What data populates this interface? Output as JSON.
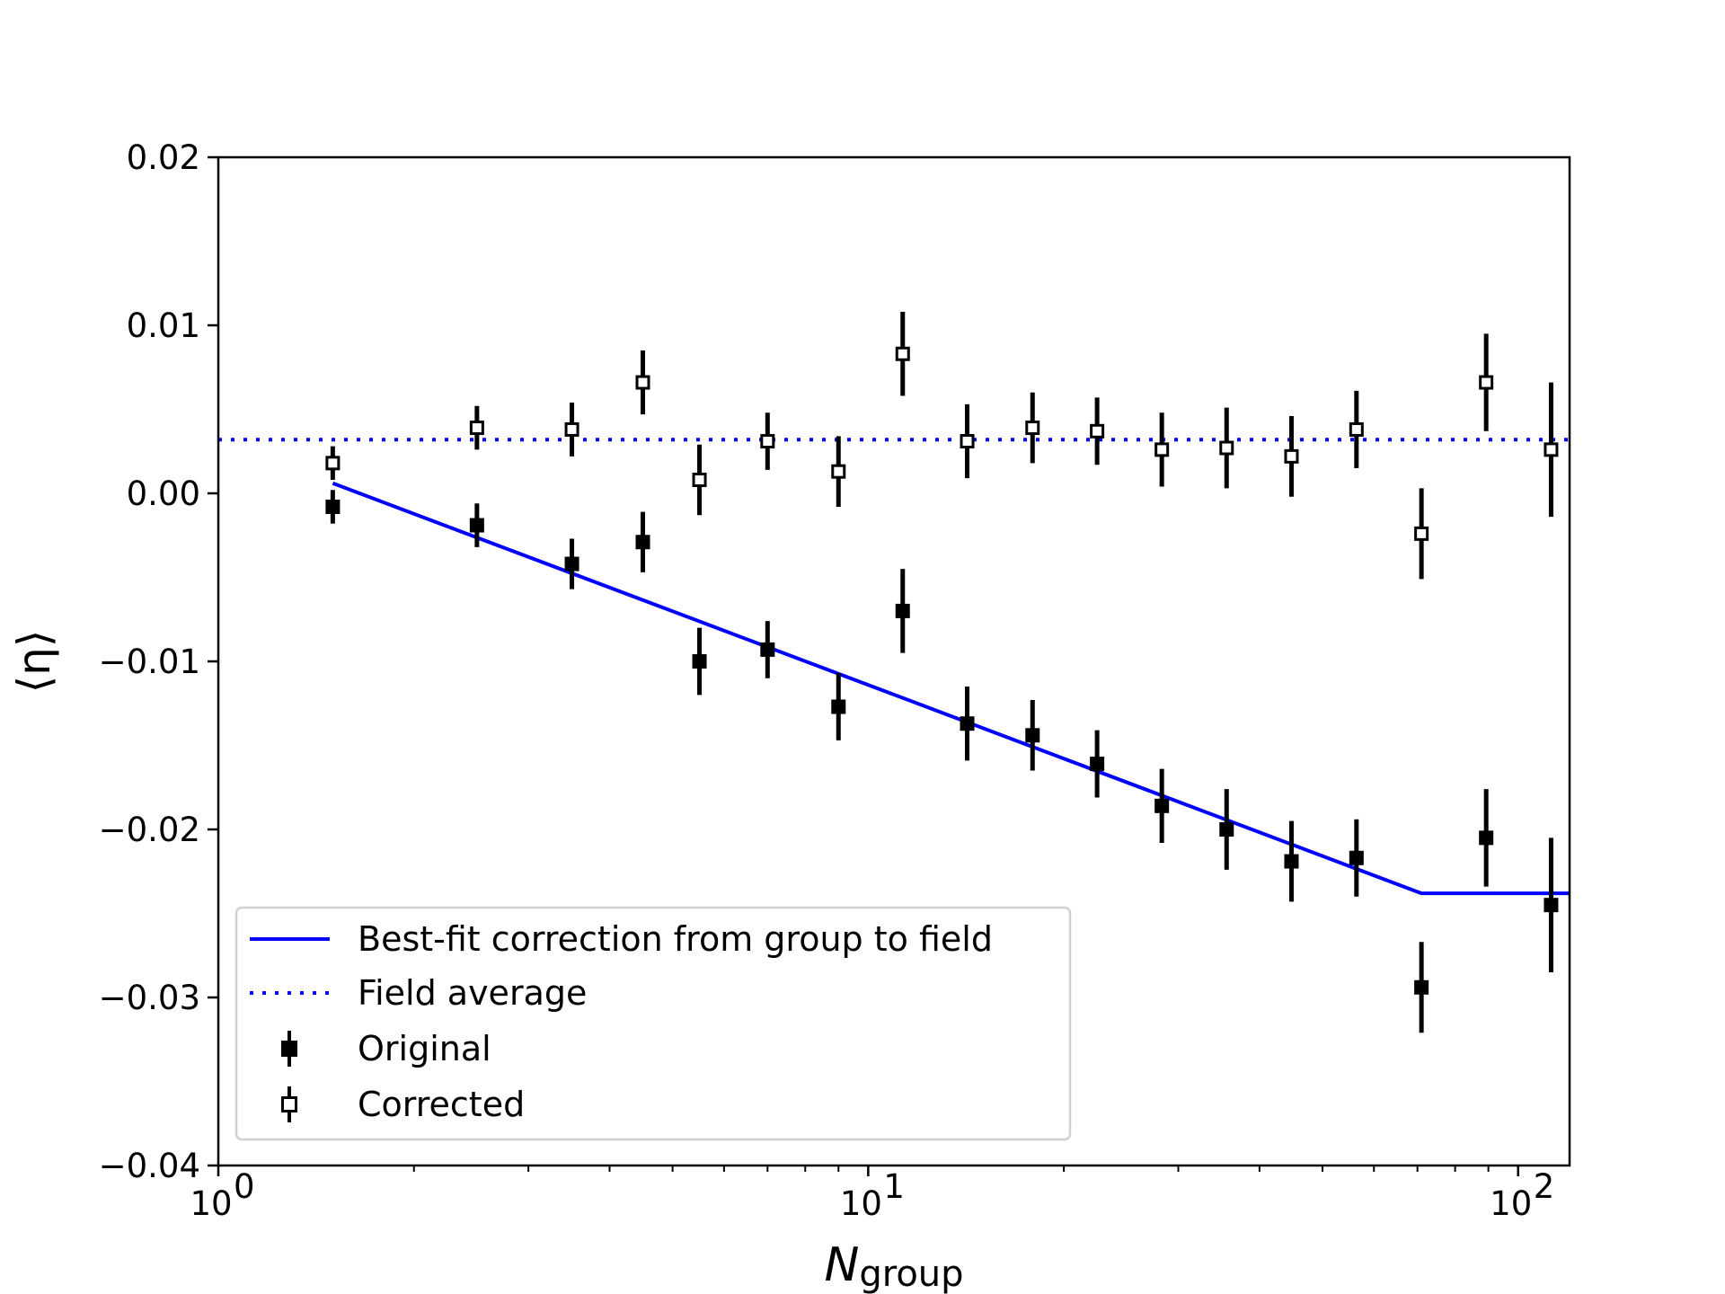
{
  "chart_data": {
    "type": "scatter",
    "xscale": "log",
    "xlim": [
      1,
      120
    ],
    "ylim": [
      -0.04,
      0.02
    ],
    "xlabel_main": "N",
    "xlabel_sub": "group",
    "ylabel": "⟨η⟩",
    "x_ticks": [
      {
        "value": 1,
        "base": "10",
        "exp": "0"
      },
      {
        "value": 10,
        "base": "10",
        "exp": "1"
      },
      {
        "value": 100,
        "base": "10",
        "exp": "2"
      }
    ],
    "y_ticks": [
      {
        "value": 0.02,
        "label": "0.02"
      },
      {
        "value": 0.01,
        "label": "0.01"
      },
      {
        "value": 0.0,
        "label": "0.00"
      },
      {
        "value": -0.01,
        "label": "−0.01"
      },
      {
        "value": -0.02,
        "label": "−0.02"
      },
      {
        "value": -0.03,
        "label": "−0.03"
      },
      {
        "value": -0.04,
        "label": "−0.04"
      }
    ],
    "series": [
      {
        "name": "Original",
        "style": "filled-square",
        "color": "#000000",
        "points": [
          {
            "x": 1.5,
            "y": -0.0008,
            "err": 0.001
          },
          {
            "x": 2.5,
            "y": -0.0019,
            "err": 0.0013
          },
          {
            "x": 3.5,
            "y": -0.0042,
            "err": 0.0015
          },
          {
            "x": 4.5,
            "y": -0.0029,
            "err": 0.0018
          },
          {
            "x": 5.5,
            "y": -0.01,
            "err": 0.002
          },
          {
            "x": 7.0,
            "y": -0.0093,
            "err": 0.0017
          },
          {
            "x": 9.0,
            "y": -0.0127,
            "err": 0.002
          },
          {
            "x": 11.3,
            "y": -0.007,
            "err": 0.0025
          },
          {
            "x": 14.2,
            "y": -0.0137,
            "err": 0.0022
          },
          {
            "x": 17.9,
            "y": -0.0144,
            "err": 0.0021
          },
          {
            "x": 22.5,
            "y": -0.0161,
            "err": 0.002
          },
          {
            "x": 28.3,
            "y": -0.0186,
            "err": 0.0022
          },
          {
            "x": 35.6,
            "y": -0.02,
            "err": 0.0024
          },
          {
            "x": 44.8,
            "y": -0.0219,
            "err": 0.0024
          },
          {
            "x": 56.4,
            "y": -0.0217,
            "err": 0.0023
          },
          {
            "x": 71.0,
            "y": -0.0294,
            "err": 0.0027
          },
          {
            "x": 89.3,
            "y": -0.0205,
            "err": 0.0029
          },
          {
            "x": 112.4,
            "y": -0.0245,
            "err": 0.004
          }
        ]
      },
      {
        "name": "Corrected",
        "style": "open-square",
        "color": "#000000",
        "points": [
          {
            "x": 1.5,
            "y": 0.0018,
            "err": 0.001
          },
          {
            "x": 2.5,
            "y": 0.0039,
            "err": 0.0013
          },
          {
            "x": 3.5,
            "y": 0.0038,
            "err": 0.0016
          },
          {
            "x": 4.5,
            "y": 0.0066,
            "err": 0.0019
          },
          {
            "x": 5.5,
            "y": 0.0008,
            "err": 0.0021
          },
          {
            "x": 7.0,
            "y": 0.0031,
            "err": 0.0017
          },
          {
            "x": 9.0,
            "y": 0.0013,
            "err": 0.0021
          },
          {
            "x": 11.3,
            "y": 0.0083,
            "err": 0.0025
          },
          {
            "x": 14.2,
            "y": 0.0031,
            "err": 0.0022
          },
          {
            "x": 17.9,
            "y": 0.0039,
            "err": 0.0021
          },
          {
            "x": 22.5,
            "y": 0.0037,
            "err": 0.002
          },
          {
            "x": 28.3,
            "y": 0.0026,
            "err": 0.0022
          },
          {
            "x": 35.6,
            "y": 0.0027,
            "err": 0.0024
          },
          {
            "x": 44.8,
            "y": 0.0022,
            "err": 0.0024
          },
          {
            "x": 56.4,
            "y": 0.0038,
            "err": 0.0023
          },
          {
            "x": 71.0,
            "y": -0.0024,
            "err": 0.0027
          },
          {
            "x": 89.3,
            "y": 0.0066,
            "err": 0.0029
          },
          {
            "x": 112.4,
            "y": 0.0026,
            "err": 0.004
          }
        ]
      }
    ],
    "lines": [
      {
        "name": "Best-fit correction from group to field",
        "style": "solid",
        "color": "#0000ff",
        "points": [
          {
            "x": 1.5,
            "y": 0.0006
          },
          {
            "x": 71.0,
            "y": -0.0238
          },
          {
            "x": 120,
            "y": -0.0238
          }
        ]
      },
      {
        "name": "Field average",
        "style": "dotted",
        "color": "#0000ff",
        "points": [
          {
            "x": 1,
            "y": 0.0032
          },
          {
            "x": 120,
            "y": 0.0032
          }
        ]
      }
    ],
    "legend": {
      "position": "lower-left",
      "entries": [
        "Best-fit correction from group to field",
        "Field average",
        "Original",
        "Corrected"
      ]
    }
  }
}
